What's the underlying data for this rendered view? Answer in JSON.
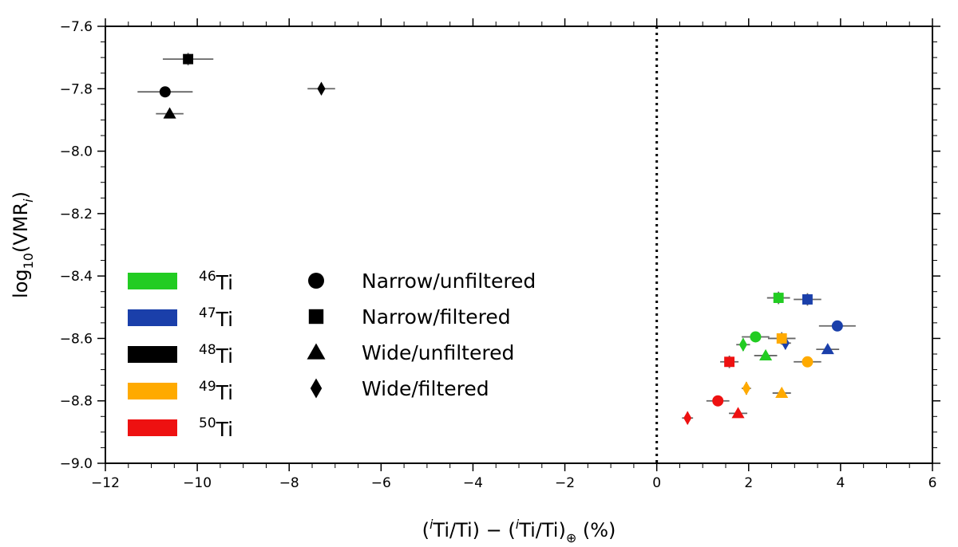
{
  "chart_data": {
    "type": "scatter",
    "xlabel": {
      "open": "(",
      "sup": "i",
      "mid": "Ti/Ti) − (",
      "sup2": "i",
      "mid2": "Ti/Ti)",
      "sub": "⊕",
      "close": " (%)"
    },
    "ylabel": {
      "pre": "log",
      "sub": "10",
      "mid": "(VMR",
      "sub2": "i",
      "close": ")"
    },
    "xlim": [
      -12,
      6
    ],
    "ylim": [
      -9.0,
      -7.6
    ],
    "xticks": [
      -12,
      -10,
      -8,
      -6,
      -4,
      -2,
      0,
      2,
      4,
      6
    ],
    "xtick_labels": [
      "−12",
      "−10",
      "−8",
      "−6",
      "−4",
      "−2",
      "0",
      "2",
      "4",
      "6"
    ],
    "yticks": [
      -9.0,
      -8.8,
      -8.6,
      -8.4,
      -8.2,
      -8.0,
      -7.8,
      -7.6
    ],
    "ytick_labels": [
      "−9.0",
      "−8.8",
      "−8.6",
      "−8.4",
      "−8.2",
      "−8.0",
      "−7.8",
      "−7.6"
    ],
    "reference_line_x": 0,
    "isotopes": [
      {
        "mass": "46",
        "name": "Ti",
        "color": "#22cc22"
      },
      {
        "mass": "47",
        "name": "Ti",
        "color": "#1a3faa"
      },
      {
        "mass": "48",
        "name": "Ti",
        "color": "#000000"
      },
      {
        "mass": "49",
        "name": "Ti",
        "color": "#ffaa00"
      },
      {
        "mass": "50",
        "name": "Ti",
        "color": "#ee1111"
      }
    ],
    "methods": [
      {
        "label": "Narrow/unfiltered",
        "marker": "circle"
      },
      {
        "label": "Narrow/filtered",
        "marker": "square"
      },
      {
        "label": "Wide/unfiltered",
        "marker": "triangle"
      },
      {
        "label": "Wide/filtered",
        "marker": "diamond"
      }
    ],
    "points": [
      {
        "isotope": 2,
        "method": 0,
        "x": -10.7,
        "y": -7.81,
        "xerr": 0.6,
        "yerr": 0.01
      },
      {
        "isotope": 2,
        "method": 1,
        "x": -10.2,
        "y": -7.705,
        "xerr": 0.55,
        "yerr": 0.02
      },
      {
        "isotope": 2,
        "method": 2,
        "x": -10.6,
        "y": -7.88,
        "xerr": 0.3,
        "yerr": 0.005
      },
      {
        "isotope": 2,
        "method": 3,
        "x": -7.3,
        "y": -7.8,
        "xerr": 0.3,
        "yerr": 0.005
      },
      {
        "isotope": 0,
        "method": 0,
        "x": 2.15,
        "y": -8.595,
        "xerr": 0.3,
        "yerr": 0.01
      },
      {
        "isotope": 0,
        "method": 1,
        "x": 2.65,
        "y": -8.47,
        "xerr": 0.25,
        "yerr": 0.02
      },
      {
        "isotope": 0,
        "method": 2,
        "x": 2.37,
        "y": -8.655,
        "xerr": 0.25,
        "yerr": 0.005
      },
      {
        "isotope": 0,
        "method": 3,
        "x": 1.88,
        "y": -8.62,
        "xerr": 0.15,
        "yerr": 0.02
      },
      {
        "isotope": 1,
        "method": 0,
        "x": 3.93,
        "y": -8.56,
        "xerr": 0.4,
        "yerr": 0.005
      },
      {
        "isotope": 1,
        "method": 1,
        "x": 3.28,
        "y": -8.475,
        "xerr": 0.3,
        "yerr": 0.02
      },
      {
        "isotope": 1,
        "method": 2,
        "x": 3.72,
        "y": -8.635,
        "xerr": 0.25,
        "yerr": 0.005
      },
      {
        "isotope": 1,
        "method": 3,
        "x": 2.8,
        "y": -8.615,
        "xerr": 0.12,
        "yerr": 0.02
      },
      {
        "isotope": 3,
        "method": 0,
        "x": 3.28,
        "y": -8.675,
        "xerr": 0.3,
        "yerr": 0.005
      },
      {
        "isotope": 3,
        "method": 1,
        "x": 2.72,
        "y": -8.6,
        "xerr": 0.3,
        "yerr": 0.02
      },
      {
        "isotope": 3,
        "method": 2,
        "x": 2.72,
        "y": -8.775,
        "xerr": 0.2,
        "yerr": 0.005
      },
      {
        "isotope": 3,
        "method": 3,
        "x": 1.95,
        "y": -8.76,
        "xerr": 0.1,
        "yerr": 0.02
      },
      {
        "isotope": 4,
        "method": 0,
        "x": 1.33,
        "y": -8.8,
        "xerr": 0.25,
        "yerr": 0.005
      },
      {
        "isotope": 4,
        "method": 1,
        "x": 1.58,
        "y": -8.675,
        "xerr": 0.2,
        "yerr": 0.02
      },
      {
        "isotope": 4,
        "method": 2,
        "x": 1.77,
        "y": -8.84,
        "xerr": 0.2,
        "yerr": 0.005
      },
      {
        "isotope": 4,
        "method": 3,
        "x": 0.67,
        "y": -8.855,
        "xerr": 0.12,
        "yerr": 0.02
      }
    ]
  }
}
